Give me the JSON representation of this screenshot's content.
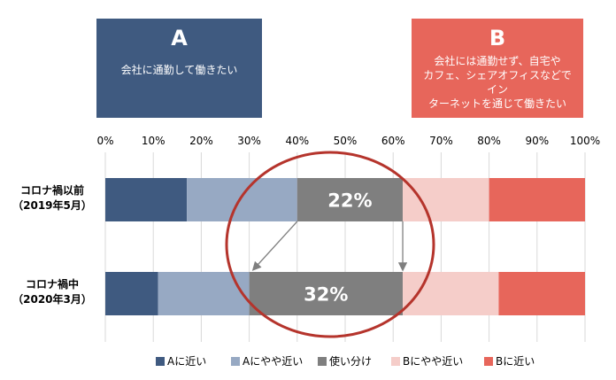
{
  "boxes": {
    "a": {
      "letter": "A",
      "desc": "会社に通勤して働きたい",
      "color": "#3f5a80"
    },
    "b": {
      "letter": "B",
      "desc": "会社には通勤せず、自宅や\nカフェ、シェアオフィスなどでイン\nターネットを通じて働きたい",
      "color": "#e7665b"
    }
  },
  "chart_data": {
    "type": "bar",
    "orientation": "horizontal",
    "stacked": true,
    "categories": [
      "コロナ禍以前\n（2019年5月）",
      "コロナ禍中\n（2020年3月）"
    ],
    "series": [
      {
        "name": "Aに近い",
        "values": [
          17,
          11
        ],
        "color": "#3f5a80"
      },
      {
        "name": "Aにやや近い",
        "values": [
          23,
          19
        ],
        "color": "#97a9c3"
      },
      {
        "name": "使い分け",
        "values": [
          22,
          32
        ],
        "color": "#7f7f7f"
      },
      {
        "name": "Bにやや近い",
        "values": [
          18,
          20
        ],
        "color": "#f5cdc9"
      },
      {
        "name": "Bに近い",
        "values": [
          20,
          18
        ],
        "color": "#e7665b"
      }
    ],
    "data_labels": [
      "22%",
      "32%"
    ],
    "x_ticks": [
      "0%",
      "10%",
      "20%",
      "30%",
      "40%",
      "50%",
      "60%",
      "70%",
      "80%",
      "90%",
      "100%"
    ],
    "xlim": [
      0,
      100
    ],
    "grid": "vertical",
    "legend_position": "bottom",
    "annotations": {
      "highlight_ellipse_color": "#b5342c",
      "arrow_color": "#7f7f7f"
    }
  }
}
